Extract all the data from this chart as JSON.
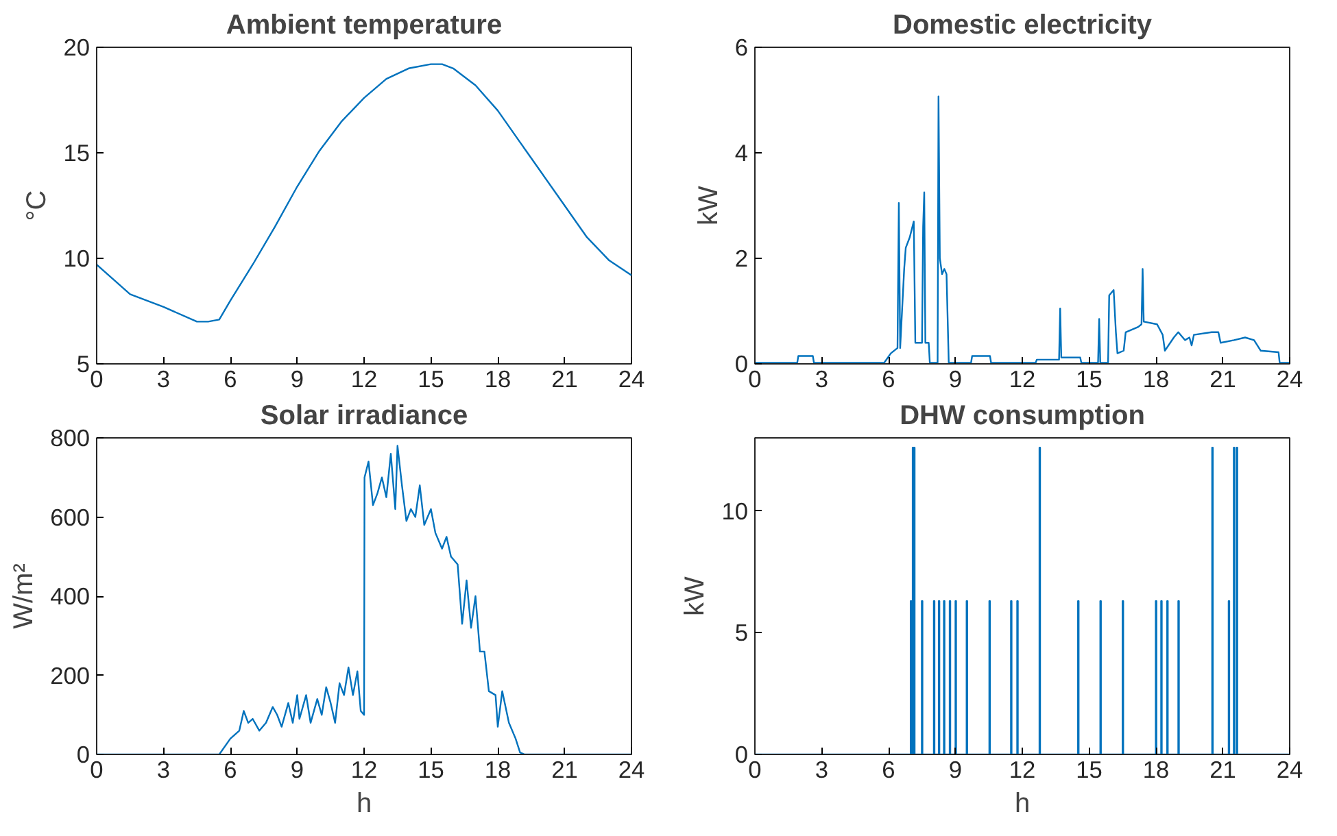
{
  "chart_data": [
    {
      "type": "line",
      "title": "Ambient temperature",
      "ylabel": "°C",
      "xlim": [
        0,
        24
      ],
      "xticks": [
        0,
        3,
        6,
        9,
        12,
        15,
        18,
        21,
        24
      ],
      "ylim": [
        5,
        20
      ],
      "yticks": [
        5,
        10,
        15,
        20
      ],
      "grid": false,
      "x": [
        0,
        1.5,
        3,
        4.5,
        5,
        5.5,
        6,
        7,
        8,
        9,
        10,
        11,
        12,
        13,
        14,
        15,
        15.5,
        16,
        17,
        18,
        19,
        20,
        21,
        22,
        23,
        24
      ],
      "series": [
        {
          "color": "#0072bd",
          "values": [
            9.7,
            8.3,
            7.7,
            7.0,
            7.0,
            7.1,
            8.0,
            9.7,
            11.5,
            13.4,
            15.1,
            16.5,
            17.6,
            18.5,
            19.0,
            19.2,
            19.2,
            19.0,
            18.2,
            17.0,
            15.5,
            14.0,
            12.5,
            11.0,
            9.9,
            9.2
          ]
        }
      ]
    },
    {
      "type": "line",
      "title": "Domestic electricity",
      "ylabel": "kW",
      "xlim": [
        0,
        24
      ],
      "xticks": [
        0,
        3,
        6,
        9,
        12,
        15,
        18,
        21,
        24
      ],
      "ylim": [
        0,
        6
      ],
      "yticks": [
        0,
        2,
        4,
        6
      ],
      "grid": false,
      "x": [
        0,
        1.9,
        1.95,
        2.6,
        2.65,
        5.8,
        6.1,
        6.4,
        6.46,
        6.52,
        6.7,
        6.77,
        6.95,
        7.13,
        7.2,
        7.5,
        7.55,
        7.6,
        7.65,
        7.8,
        7.85,
        8.2,
        8.24,
        8.3,
        8.4,
        8.5,
        8.6,
        8.7,
        9.7,
        9.75,
        10.55,
        10.6,
        12.6,
        12.65,
        13.65,
        13.7,
        13.75,
        14.6,
        14.65,
        15.4,
        15.45,
        15.5,
        15.85,
        15.9,
        16.1,
        16.2,
        16.27,
        16.55,
        16.64,
        17.2,
        17.35,
        17.4,
        17.45,
        18.05,
        18.3,
        18.4,
        18.8,
        19.0,
        19.3,
        19.5,
        19.6,
        19.7,
        20.5,
        20.8,
        20.9,
        21.5,
        22.0,
        22.4,
        22.7,
        23.5,
        23.55,
        24
      ],
      "series": [
        {
          "color": "#0072bd",
          "values": [
            0.02,
            0.02,
            0.15,
            0.15,
            0.02,
            0.02,
            0.2,
            0.3,
            3.05,
            0.3,
            1.8,
            2.2,
            2.4,
            2.7,
            0.4,
            0.4,
            2.6,
            3.25,
            0.4,
            0.4,
            0.02,
            0.02,
            5.07,
            2.0,
            1.7,
            1.8,
            1.7,
            0.02,
            0.02,
            0.15,
            0.15,
            0.02,
            0.02,
            0.08,
            0.08,
            1.05,
            0.12,
            0.12,
            0.02,
            0.02,
            0.85,
            0.02,
            0.02,
            1.3,
            1.4,
            0.6,
            0.2,
            0.25,
            0.6,
            0.7,
            0.75,
            1.8,
            0.8,
            0.75,
            0.55,
            0.25,
            0.5,
            0.6,
            0.45,
            0.5,
            0.35,
            0.55,
            0.6,
            0.6,
            0.4,
            0.45,
            0.5,
            0.45,
            0.25,
            0.22,
            0.02,
            0.02
          ]
        }
      ]
    },
    {
      "type": "line",
      "title": "Solar irradiance",
      "ylabel": "W/m²",
      "xlabel": "h",
      "xlim": [
        0,
        24
      ],
      "xticks": [
        0,
        3,
        6,
        9,
        12,
        15,
        18,
        21,
        24
      ],
      "ylim": [
        0,
        800
      ],
      "yticks": [
        0,
        200,
        400,
        600,
        800
      ],
      "grid": false,
      "x": [
        0,
        5.5,
        6,
        6.4,
        6.6,
        6.8,
        7.0,
        7.3,
        7.6,
        7.9,
        8.1,
        8.3,
        8.6,
        8.8,
        9.0,
        9.1,
        9.4,
        9.6,
        9.9,
        10.1,
        10.3,
        10.5,
        10.7,
        10.9,
        11.1,
        11.3,
        11.5,
        11.7,
        11.85,
        12.0,
        12.02,
        12.2,
        12.4,
        12.6,
        12.8,
        13.0,
        13.2,
        13.4,
        13.5,
        13.7,
        13.9,
        14.1,
        14.3,
        14.5,
        14.7,
        15.0,
        15.2,
        15.5,
        15.7,
        15.9,
        16.2,
        16.4,
        16.6,
        16.8,
        17.0,
        17.2,
        17.4,
        17.6,
        17.9,
        18.0,
        18.2,
        18.5,
        18.8,
        19.0,
        19.2,
        24
      ],
      "series": [
        {
          "color": "#0072bd",
          "values": [
            0,
            0,
            40,
            60,
            110,
            80,
            90,
            60,
            80,
            120,
            100,
            70,
            130,
            80,
            150,
            90,
            150,
            80,
            140,
            100,
            170,
            130,
            80,
            180,
            150,
            220,
            150,
            210,
            110,
            100,
            700,
            740,
            630,
            660,
            700,
            650,
            760,
            620,
            780,
            680,
            590,
            620,
            600,
            680,
            580,
            620,
            560,
            520,
            550,
            500,
            480,
            330,
            440,
            320,
            400,
            260,
            260,
            160,
            150,
            70,
            160,
            80,
            40,
            5,
            0,
            0
          ]
        }
      ]
    },
    {
      "type": "line",
      "title": "DHW consumption",
      "ylabel": "kW",
      "xlabel": "h",
      "xlim": [
        0,
        24
      ],
      "xticks": [
        0,
        3,
        6,
        9,
        12,
        15,
        18,
        21,
        24
      ],
      "ylim": [
        0,
        13
      ],
      "yticks": [
        0,
        5,
        10
      ],
      "grid": false,
      "x": [
        0,
        6.99,
        6.99,
        7.02,
        7.02,
        7.08,
        7.08,
        7.11,
        7.11,
        7.14,
        7.14,
        7.17,
        7.17,
        7.49,
        7.49,
        7.52,
        7.52,
        8.03,
        8.03,
        8.06,
        8.06,
        8.25,
        8.25,
        8.28,
        8.28,
        8.48,
        8.48,
        8.51,
        8.51,
        8.74,
        8.74,
        8.77,
        8.77,
        9.0,
        9.0,
        9.03,
        9.03,
        9.5,
        9.5,
        9.53,
        9.53,
        10.52,
        10.52,
        10.55,
        10.55,
        11.49,
        11.49,
        11.52,
        11.52,
        11.77,
        11.77,
        11.8,
        11.8,
        12.77,
        12.77,
        12.8,
        12.8,
        14.5,
        14.5,
        14.53,
        14.53,
        15.5,
        15.5,
        15.53,
        15.53,
        16.5,
        16.5,
        16.53,
        16.53,
        17.99,
        17.99,
        18.02,
        18.02,
        18.23,
        18.23,
        18.26,
        18.26,
        18.5,
        18.5,
        18.53,
        18.53,
        19.0,
        19.0,
        19.03,
        19.03,
        20.52,
        20.52,
        20.55,
        20.55,
        21.26,
        21.26,
        21.29,
        21.29,
        21.49,
        21.49,
        21.52,
        21.52,
        21.62,
        21.62,
        21.65,
        21.65,
        24
      ],
      "series": [
        {
          "color": "#0072bd",
          "values": [
            0,
            0,
            6.3,
            6.3,
            0,
            0,
            12.6,
            12.6,
            0,
            0,
            12.6,
            12.6,
            0,
            0,
            6.3,
            6.3,
            0,
            0,
            6.3,
            6.3,
            0,
            0,
            6.3,
            6.3,
            0,
            0,
            6.3,
            6.3,
            0,
            0,
            6.3,
            6.3,
            0,
            0,
            6.3,
            6.3,
            0,
            0,
            6.3,
            6.3,
            0,
            0,
            6.3,
            6.3,
            0,
            0,
            6.3,
            6.3,
            0,
            0,
            6.3,
            6.3,
            0,
            0,
            12.6,
            12.6,
            0,
            0,
            6.3,
            6.3,
            0,
            0,
            6.3,
            6.3,
            0,
            0,
            6.3,
            6.3,
            0,
            0,
            6.3,
            6.3,
            0,
            0,
            6.3,
            6.3,
            0,
            0,
            6.3,
            6.3,
            0,
            0,
            6.3,
            6.3,
            0,
            0,
            12.6,
            12.6,
            0,
            0,
            6.3,
            6.3,
            0,
            0,
            12.6,
            12.6,
            0,
            0,
            12.6,
            12.6,
            0,
            0
          ]
        }
      ]
    }
  ]
}
